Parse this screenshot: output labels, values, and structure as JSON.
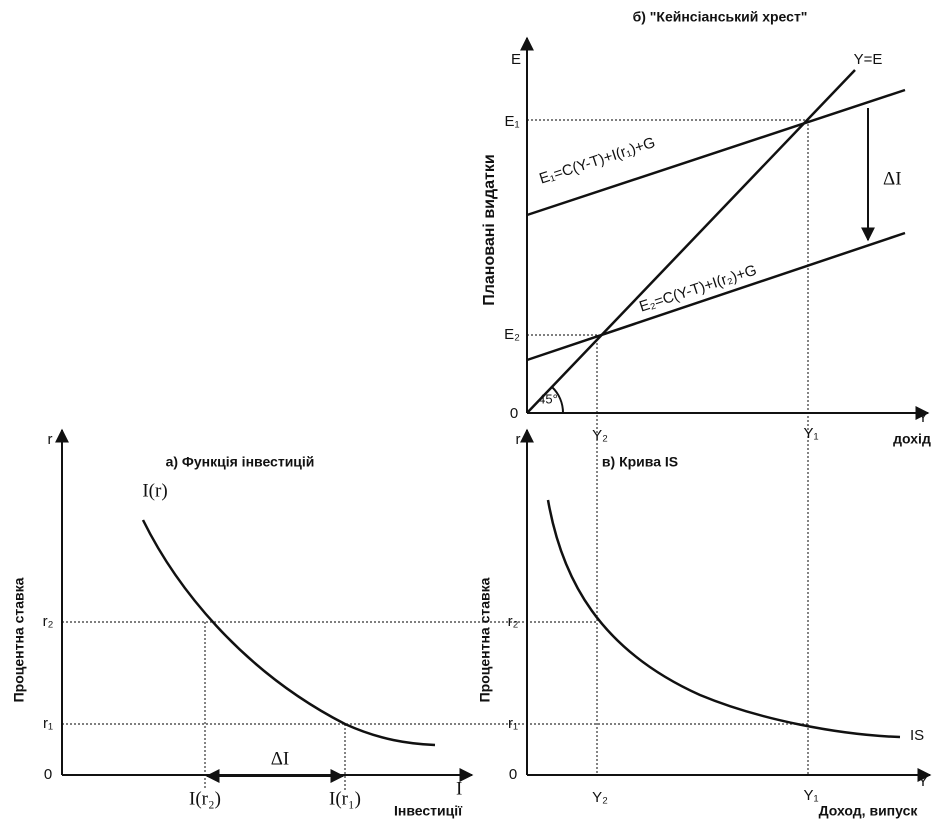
{
  "panel_b": {
    "title": "б) \"Кейнсіанський хрест\"",
    "y_axis": "E",
    "x_axis": "Y",
    "x_axis_caption": "дохід",
    "y_axis_caption": "Плановані видатки",
    "origin": "0",
    "e1": "E₁",
    "e2": "E₂",
    "y1": "Y₁",
    "y2": "Y₂",
    "line_45": "Y=E",
    "angle": "45°",
    "line_e1": "E₁=C(Y-T)+I(r₁)+G",
    "line_e2": "E₂=C(Y-T)+I(r₂)+G",
    "delta": "ΔI"
  },
  "panel_a": {
    "title": "а) Функція інвестицій",
    "y_axis": "r",
    "x_axis": "I",
    "x_axis_caption": "Інвестиції",
    "y_axis_caption": "Процентна ставка",
    "origin": "0",
    "r1": "r₁",
    "r2": "r₂",
    "curve": "I(r)",
    "i_r2": "I(r₂)",
    "i_r1": "I(r₁)",
    "delta": "ΔI"
  },
  "panel_c": {
    "title": "в) Крива IS",
    "y_axis": "r",
    "x_axis": "Y",
    "x_axis_caption": "Доход, випуск",
    "y_axis_caption": "Процентна ставка",
    "origin": "0",
    "r1": "r₁",
    "r2": "r₂",
    "y1": "Y₁",
    "y2": "Y₂",
    "curve": "IS"
  }
}
